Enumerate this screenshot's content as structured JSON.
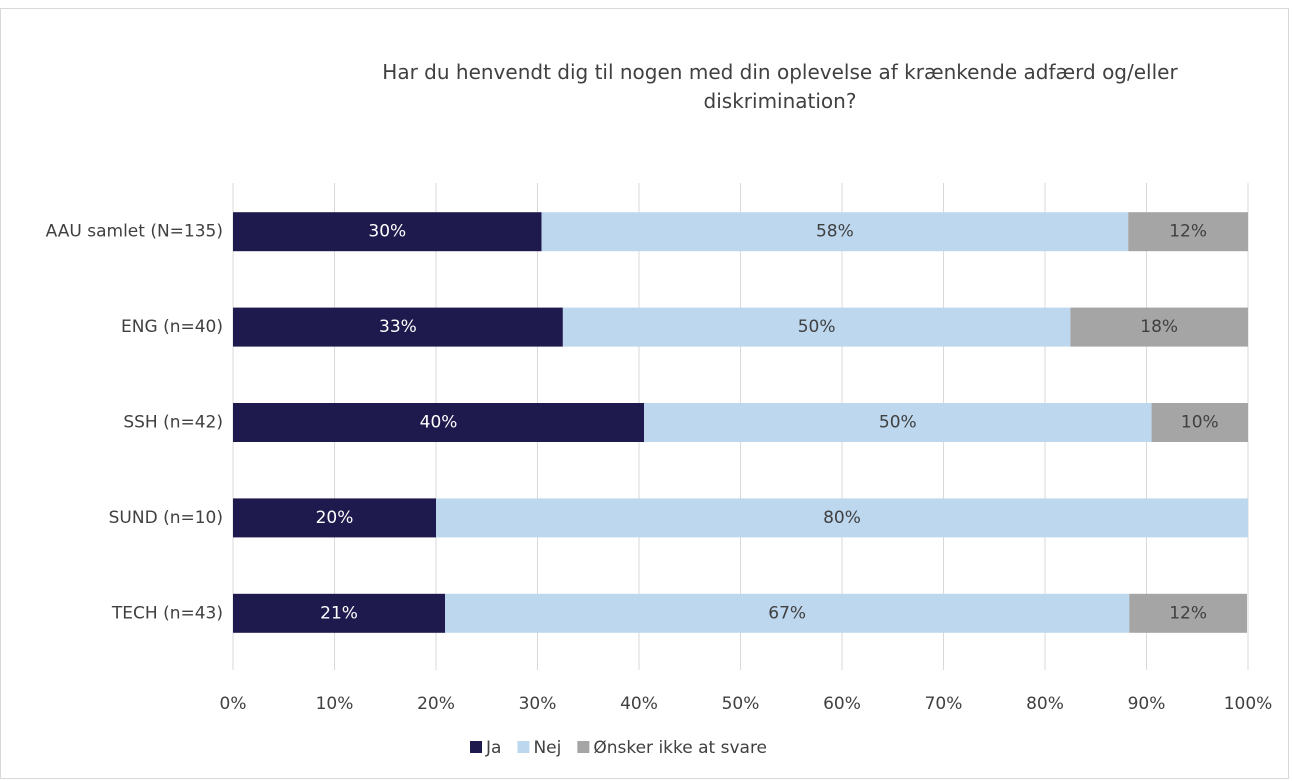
{
  "chart_data": {
    "type": "stacked-bar-horizontal",
    "title": "Har du henvendt dig til nogen med din oplevelse af krænkende adfærd og/eller diskrimination?",
    "categories": [
      "AAU samlet (N=135)",
      "ENG (n=40)",
      "SSH (n=42)",
      "SUND (n=10)",
      "TECH (n=43)"
    ],
    "series": [
      {
        "name": "Ja",
        "color": "#1f1a4d",
        "values": [
          30.4,
          32.5,
          40.5,
          20,
          20.9
        ],
        "value_labels": [
          "30%",
          "33%",
          "40%",
          "20%",
          "21%"
        ]
      },
      {
        "name": "Nej",
        "color": "#bdd7ee",
        "values": [
          57.8,
          50,
          50,
          80,
          67.4
        ],
        "value_labels": [
          "58%",
          "50%",
          "50%",
          "80%",
          "67%"
        ]
      },
      {
        "name": "Ønsker ikke at svare",
        "color": "#a5a5a5",
        "values": [
          11.8,
          17.5,
          9.5,
          0,
          11.6
        ],
        "value_labels": [
          "12%",
          "18%",
          "10%",
          null,
          "12%"
        ]
      }
    ],
    "xlim": [
      0,
      100
    ],
    "xticks": [
      {
        "value": 0,
        "label": "0%"
      },
      {
        "value": 10,
        "label": "10%"
      },
      {
        "value": 20,
        "label": "20%"
      },
      {
        "value": 30,
        "label": "30%"
      },
      {
        "value": 40,
        "label": "40%"
      },
      {
        "value": 50,
        "label": "50%"
      },
      {
        "value": 60,
        "label": "60%"
      },
      {
        "value": 70,
        "label": "70%"
      },
      {
        "value": 80,
        "label": "80%"
      },
      {
        "value": 90,
        "label": "90%"
      },
      {
        "value": 100,
        "label": "100%"
      }
    ],
    "grid": true,
    "legend": "bottom"
  }
}
